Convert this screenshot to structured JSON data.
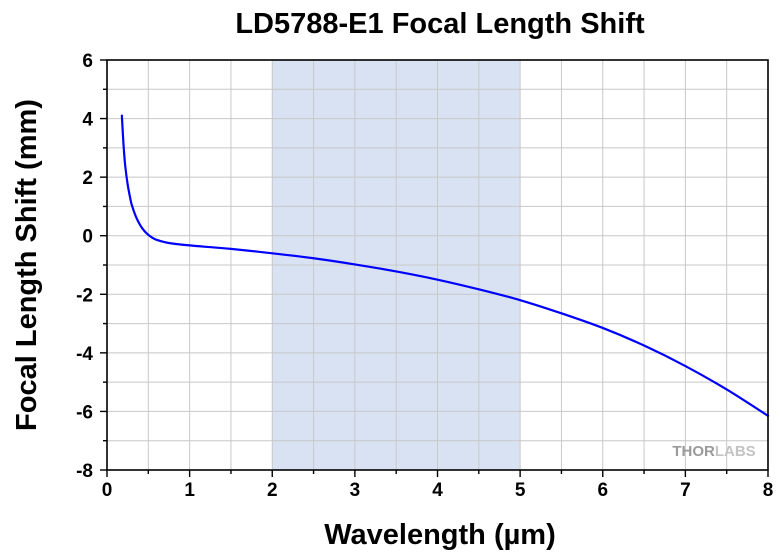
{
  "chart_data": {
    "type": "line",
    "title": "LD5788-E1 Focal Length Shift",
    "xlabel": "Wavelength (µm)",
    "ylabel": "Focal Length Shift (mm)",
    "xlim": [
      0,
      8
    ],
    "ylim": [
      -8,
      6
    ],
    "xticks": [
      0,
      1,
      2,
      3,
      4,
      5,
      6,
      7,
      8
    ],
    "xtick_labels": [
      "0",
      "1",
      "2",
      "3",
      "4",
      "5",
      "6",
      "7",
      "8"
    ],
    "yticks": [
      -8,
      -6,
      -4,
      -2,
      0,
      2,
      4,
      6
    ],
    "ytick_labels": [
      "-8",
      "-6",
      "-4",
      "-2",
      "0",
      "2",
      "4",
      "6"
    ],
    "grid": true,
    "highlight_band": {
      "x": [
        2,
        5
      ],
      "color": "#d9e2f3"
    },
    "series": [
      {
        "color": "#0000ff",
        "x": [
          0.18,
          0.2,
          0.22,
          0.25,
          0.28,
          0.3,
          0.35,
          0.4,
          0.45,
          0.5,
          0.55,
          0.6,
          0.7,
          0.8,
          1.0,
          1.2,
          1.5,
          2.0,
          2.5,
          3.0,
          3.5,
          4.0,
          4.5,
          5.0,
          5.5,
          6.0,
          6.5,
          7.0,
          7.5,
          8.0
        ],
        "y": [
          4.1,
          3.1,
          2.4,
          1.75,
          1.3,
          1.05,
          0.65,
          0.37,
          0.17,
          0.03,
          -0.07,
          -0.14,
          -0.22,
          -0.27,
          -0.33,
          -0.38,
          -0.45,
          -0.6,
          -0.77,
          -0.98,
          -1.22,
          -1.5,
          -1.83,
          -2.2,
          -2.65,
          -3.15,
          -3.75,
          -4.45,
          -5.25,
          -6.15
        ]
      }
    ]
  },
  "watermark": {
    "prefix": "THOR",
    "suffix": "LABS"
  }
}
